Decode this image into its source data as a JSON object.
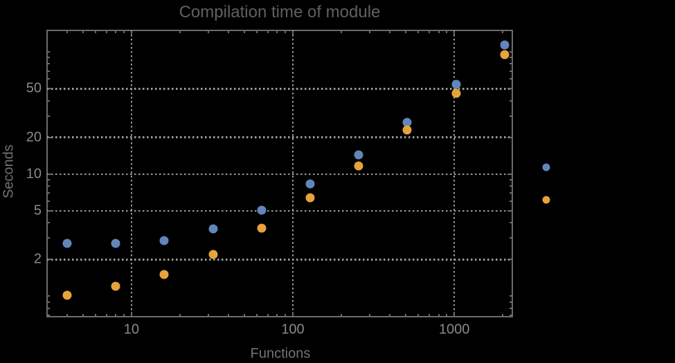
{
  "title": "Compilation time of module",
  "chart_data": {
    "type": "scatter",
    "title": "Compilation time of module",
    "xlabel": "Functions",
    "ylabel": "Seconds",
    "x_scale": "log",
    "y_scale": "log",
    "xlim": [
      3.0,
      2290
    ],
    "ylim": [
      0.68,
      150.3
    ],
    "grid": true,
    "legend_position": "right-outside (markers only, no visible labels)",
    "x_ticks": [
      10,
      100,
      1000
    ],
    "y_ticks": [
      2,
      5,
      10,
      20,
      50
    ],
    "x_minor_ticks": [
      4,
      5,
      6,
      7,
      8,
      9,
      20,
      30,
      40,
      50,
      60,
      70,
      80,
      90,
      200,
      300,
      400,
      500,
      600,
      700,
      800,
      900,
      2000
    ],
    "y_minor_ticks": [
      0.7,
      0.8,
      0.9,
      1,
      3,
      4,
      6,
      7,
      8,
      9,
      30,
      40,
      60,
      70,
      80,
      90,
      100
    ],
    "x": [
      4,
      8,
      16,
      32,
      64,
      128,
      256,
      512,
      1024,
      2048
    ],
    "series": [
      {
        "name": "series-1-blue",
        "color": "#6286bb",
        "values": [
          2.7,
          2.7,
          2.85,
          3.55,
          5.05,
          8.3,
          14.3,
          26.6,
          54.5,
          115
        ]
      },
      {
        "name": "series-2-orange",
        "color": "#e7a33b",
        "values": [
          1.02,
          1.2,
          1.5,
          2.2,
          3.6,
          6.4,
          11.6,
          22.9,
          45.8,
          95
        ]
      }
    ],
    "legend": {
      "entries": [
        {
          "name": "legend-marker-blue",
          "marker_color": "#6286bb",
          "label": ""
        },
        {
          "name": "legend-marker-orange",
          "marker_color": "#e7a33b",
          "label": ""
        }
      ]
    }
  },
  "colors": {
    "background": "#000000",
    "frame": "#6c6c6c",
    "gridline": "#9c9c9c",
    "tick_label": "#8a8a8a",
    "axis_label": "#747474",
    "title": "#606060",
    "series_blue": "#6286bb",
    "series_orange": "#e7a33b"
  }
}
